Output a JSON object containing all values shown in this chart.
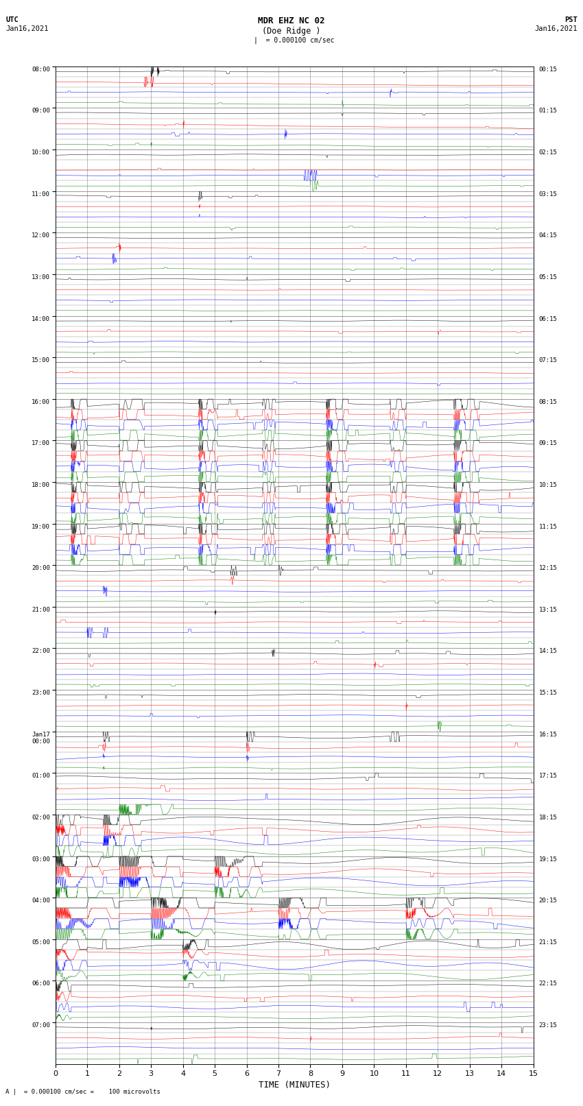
{
  "title_line1": "MDR EHZ NC 02",
  "title_line2": "(Doe Ridge )",
  "scale_label": "= 0.000100 cm/sec",
  "bottom_label": "= 0.000100 cm/sec =    100 microvolts",
  "utc_label": "UTC",
  "utc_date": "Jan16,2021",
  "pst_label": "PST",
  "pst_date": "Jan16,2021",
  "xlabel": "TIME (MINUTES)",
  "background_color": "#ffffff",
  "grid_color": "#888888",
  "trace_colors": [
    "black",
    "red",
    "blue",
    "green"
  ],
  "left_times_utc": [
    "08:00",
    "09:00",
    "10:00",
    "11:00",
    "12:00",
    "13:00",
    "14:00",
    "15:00",
    "16:00",
    "17:00",
    "18:00",
    "19:00",
    "20:00",
    "21:00",
    "22:00",
    "23:00",
    "Jan17\n00:00",
    "01:00",
    "02:00",
    "03:00",
    "04:00",
    "05:00",
    "06:00",
    "07:00"
  ],
  "right_times_pst": [
    "00:15",
    "01:15",
    "02:15",
    "03:15",
    "04:15",
    "05:15",
    "06:15",
    "07:15",
    "08:15",
    "09:15",
    "10:15",
    "11:15",
    "12:15",
    "13:15",
    "14:15",
    "15:15",
    "16:15",
    "17:15",
    "18:15",
    "19:15",
    "20:15",
    "21:15",
    "22:15",
    "23:15"
  ],
  "n_hours": 24,
  "minutes_per_row": 15,
  "x_ticks": [
    0,
    1,
    2,
    3,
    4,
    5,
    6,
    7,
    8,
    9,
    10,
    11,
    12,
    13,
    14,
    15
  ],
  "figwidth": 8.5,
  "figheight": 16.13
}
